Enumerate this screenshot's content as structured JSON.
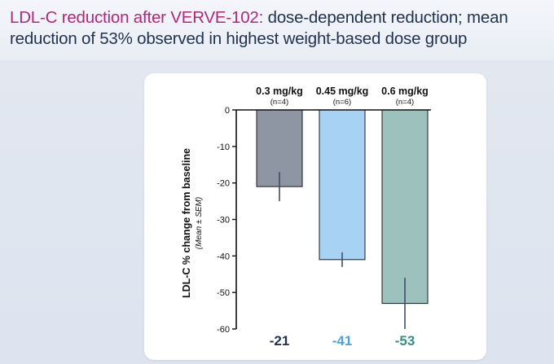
{
  "header": {
    "title_accent": "LDL-C reduction after VERVE-102:",
    "title_rest": " dose-dependent reduction; mean reduction of 53% observed in highest weight-based dose group"
  },
  "chart_data": {
    "type": "bar",
    "ylabel": "LDL-C % change from baseline",
    "ylabel_sub": "(Mean ± SEM)",
    "ylim": [
      -60,
      0
    ],
    "yticks": [
      0,
      -10,
      -20,
      -30,
      -40,
      -50,
      -60
    ],
    "grid": false,
    "categories": [
      "0.3 mg/kg",
      "0.45 mg/kg",
      "0.6 mg/kg"
    ],
    "n_labels": [
      "(n=4)",
      "(n=6)",
      "(n=4)"
    ],
    "values": [
      -21,
      -41,
      -53
    ],
    "error_low": [
      -25,
      -43,
      -60
    ],
    "error_high": [
      -17,
      -39,
      -46
    ],
    "value_labels": [
      "-21",
      "-41",
      "-53"
    ],
    "bar_colors": [
      "#8e95a3",
      "#a8d2f4",
      "#9dc2bd"
    ],
    "value_label_colors": [
      "#1f3350",
      "#4da3e0",
      "#3a8c86"
    ],
    "error_color": "#3d4f66"
  }
}
